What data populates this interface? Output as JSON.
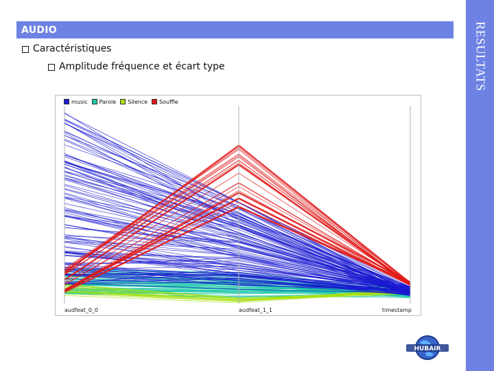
{
  "slide": {
    "section_title": "AUDIO",
    "side_label": "RESULTATS",
    "bullet_1": "Caractéristiques",
    "bullet_2": "Amplitude fréquence et écart type"
  },
  "colors": {
    "accent": "#6d82e3",
    "music": "#1a1ad0",
    "parole": "#1ec8a8",
    "silence": "#a8e010",
    "souffle": "#e01818"
  },
  "chart_data": {
    "type": "line",
    "kind": "parallel-coordinates",
    "axes": [
      "audfeat_0_0",
      "audfeat_1_1",
      "timestamp"
    ],
    "legend": [
      {
        "name": "music",
        "color": "#1a1ad0"
      },
      {
        "name": "Parole",
        "color": "#1ec8a8"
      },
      {
        "name": "Silence",
        "color": "#a8e010"
      },
      {
        "name": "Souffle",
        "color": "#e01818"
      }
    ],
    "value_range": [
      0,
      1
    ],
    "series": [
      {
        "name": "Souffle",
        "start": [
          0.06,
          0.18
        ],
        "middle": [
          0.47,
          0.84
        ],
        "end": [
          0.09,
          0.11
        ],
        "count": 22
      },
      {
        "name": "music",
        "start": [
          0.1,
          0.98
        ],
        "middle": [
          0.04,
          0.52
        ],
        "end": [
          0.04,
          0.09
        ],
        "count": 120
      },
      {
        "name": "Parole",
        "start": [
          0.05,
          0.18
        ],
        "middle": [
          0.02,
          0.16
        ],
        "end": [
          0.03,
          0.08
        ],
        "count": 60
      },
      {
        "name": "Silence",
        "start": [
          0.04,
          0.1
        ],
        "middle": [
          0.0,
          0.03
        ],
        "end": [
          0.05,
          0.08
        ],
        "count": 14
      }
    ],
    "grid": false,
    "legend_position": "top-left"
  },
  "logo": {
    "text": "HUBAIR"
  }
}
